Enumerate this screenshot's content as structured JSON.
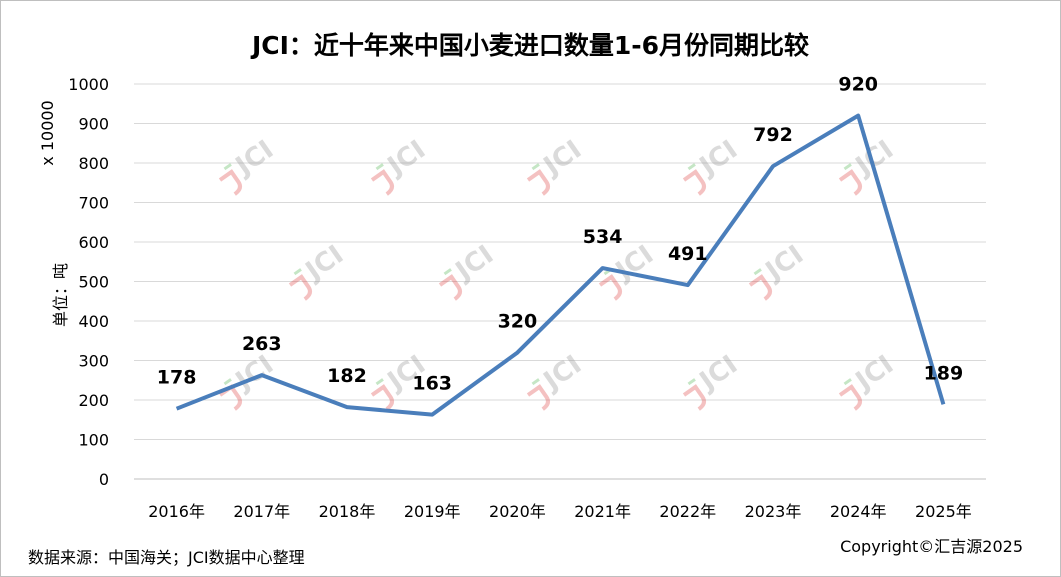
{
  "chart_data": {
    "type": "line",
    "title": "JCI：近十年来中国小麦进口数量1-6月份同期比较",
    "categories": [
      "2016年",
      "2017年",
      "2018年",
      "2019年",
      "2020年",
      "2021年",
      "2022年",
      "2023年",
      "2024年",
      "2025年"
    ],
    "series": [
      {
        "values": [
          178,
          263,
          182,
          163,
          320,
          534,
          491,
          792,
          920,
          189
        ],
        "color": "#4a7ebb"
      }
    ],
    "ylim": [
      0,
      1000
    ],
    "yticks": [
      0,
      100,
      200,
      300,
      400,
      500,
      600,
      700,
      800,
      900,
      1000
    ],
    "ylabel": "单位：吨",
    "yunit": "x 10000",
    "grid": true,
    "legend": "none"
  },
  "footer": {
    "source": "数据来源：中国海关；JCI数据中心整理",
    "copyright": "Copyright©汇吉源2025"
  },
  "watermark": {
    "text": "JCI"
  }
}
